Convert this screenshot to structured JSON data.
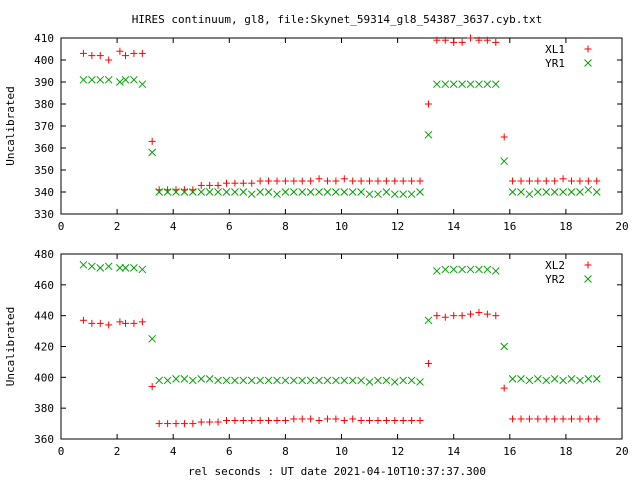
{
  "page": {
    "title": "HIRES continuum, gl8, file:Skynet_59314_gl8_54387_3637.cyb.txt",
    "xlabel": "rel seconds : UT date 2021-04-10T10:37:37.300"
  },
  "colors": {
    "plus": "#ff0000",
    "cross": "#00a000",
    "axis": "#000000",
    "background": "#ffffff"
  },
  "chart_data": [
    {
      "type": "scatter",
      "ylabel": "Uncalibrated",
      "xlim": [
        0,
        20
      ],
      "ylim": [
        330,
        410
      ],
      "xticks": [
        "0",
        "2",
        "4",
        "6",
        "8",
        "10",
        "12",
        "14",
        "16",
        "18",
        "20"
      ],
      "yticks": [
        "330",
        "340",
        "350",
        "360",
        "370",
        "380",
        "390",
        "400",
        "410"
      ],
      "legend_position": "top-right",
      "series": [
        {
          "name": "XL1",
          "marker": "plus",
          "x": [
            0.8,
            1.1,
            1.4,
            1.7,
            2.1,
            2.3,
            2.6,
            2.9,
            3.25,
            3.5,
            3.8,
            4.1,
            4.4,
            4.7,
            5.0,
            5.3,
            5.6,
            5.9,
            6.2,
            6.5,
            6.8,
            7.1,
            7.4,
            7.7,
            8.0,
            8.3,
            8.6,
            8.9,
            9.2,
            9.5,
            9.8,
            10.1,
            10.4,
            10.7,
            11.0,
            11.3,
            11.6,
            11.9,
            12.2,
            12.5,
            12.8,
            13.1,
            13.4,
            13.7,
            14.0,
            14.3,
            14.6,
            14.9,
            15.2,
            15.5,
            15.8,
            16.1,
            16.4,
            16.7,
            17.0,
            17.3,
            17.6,
            17.9,
            18.2,
            18.5,
            18.8,
            19.1
          ],
          "y": [
            403,
            402,
            402,
            400,
            404,
            402,
            403,
            403,
            363,
            341,
            341,
            341,
            341,
            341,
            343,
            343,
            343,
            344,
            344,
            344,
            344,
            345,
            345,
            345,
            345,
            345,
            345,
            345,
            346,
            345,
            345,
            346,
            345,
            345,
            345,
            345,
            345,
            345,
            345,
            345,
            345,
            380,
            409,
            409,
            408,
            408,
            410,
            409,
            409,
            408,
            365,
            345,
            345,
            345,
            345,
            345,
            345,
            346,
            345,
            345,
            345,
            345
          ]
        },
        {
          "name": "YR1",
          "marker": "cross",
          "x": [
            0.8,
            1.1,
            1.4,
            1.7,
            2.1,
            2.3,
            2.6,
            2.9,
            3.25,
            3.5,
            3.8,
            4.1,
            4.4,
            4.7,
            5.0,
            5.3,
            5.6,
            5.9,
            6.2,
            6.5,
            6.8,
            7.1,
            7.4,
            7.7,
            8.0,
            8.3,
            8.6,
            8.9,
            9.2,
            9.5,
            9.8,
            10.1,
            10.4,
            10.7,
            11.0,
            11.3,
            11.6,
            11.9,
            12.2,
            12.5,
            12.8,
            13.1,
            13.4,
            13.7,
            14.0,
            14.3,
            14.6,
            14.9,
            15.2,
            15.5,
            15.8,
            16.1,
            16.4,
            16.7,
            17.0,
            17.3,
            17.6,
            17.9,
            18.2,
            18.5,
            18.8,
            19.1
          ],
          "y": [
            391,
            391,
            391,
            391,
            390,
            391,
            391,
            389,
            358,
            340,
            340,
            340,
            340,
            340,
            340,
            340,
            340,
            340,
            340,
            340,
            339,
            340,
            340,
            339,
            340,
            340,
            340,
            340,
            340,
            340,
            340,
            340,
            340,
            340,
            339,
            339,
            340,
            339,
            339,
            339,
            340,
            366,
            389,
            389,
            389,
            389,
            389,
            389,
            389,
            389,
            354,
            340,
            340,
            339,
            340,
            340,
            340,
            340,
            340,
            340,
            341,
            340
          ]
        }
      ]
    },
    {
      "type": "scatter",
      "ylabel": "Uncalibrated",
      "xlim": [
        0,
        20
      ],
      "ylim": [
        360,
        480
      ],
      "xticks": [
        "0",
        "2",
        "4",
        "6",
        "8",
        "10",
        "12",
        "14",
        "16",
        "18",
        "20"
      ],
      "yticks": [
        "360",
        "380",
        "400",
        "420",
        "440",
        "460",
        "480"
      ],
      "legend_position": "top-right",
      "series": [
        {
          "name": "XL2",
          "marker": "plus",
          "x": [
            0.8,
            1.1,
            1.4,
            1.7,
            2.1,
            2.3,
            2.6,
            2.9,
            3.25,
            3.5,
            3.8,
            4.1,
            4.4,
            4.7,
            5.0,
            5.3,
            5.6,
            5.9,
            6.2,
            6.5,
            6.8,
            7.1,
            7.4,
            7.7,
            8.0,
            8.3,
            8.6,
            8.9,
            9.2,
            9.5,
            9.8,
            10.1,
            10.4,
            10.7,
            11.0,
            11.3,
            11.6,
            11.9,
            12.2,
            12.5,
            12.8,
            13.1,
            13.4,
            13.7,
            14.0,
            14.3,
            14.6,
            14.9,
            15.2,
            15.5,
            15.8,
            16.1,
            16.4,
            16.7,
            17.0,
            17.3,
            17.6,
            17.9,
            18.2,
            18.5,
            18.8,
            19.1
          ],
          "y": [
            437,
            435,
            435,
            434,
            436,
            435,
            435,
            436,
            394,
            370,
            370,
            370,
            370,
            370,
            371,
            371,
            371,
            372,
            372,
            372,
            372,
            372,
            372,
            372,
            372,
            373,
            373,
            373,
            372,
            373,
            373,
            372,
            373,
            372,
            372,
            372,
            372,
            372,
            372,
            372,
            372,
            409,
            440,
            439,
            440,
            440,
            441,
            442,
            441,
            440,
            393,
            373,
            373,
            373,
            373,
            373,
            373,
            373,
            373,
            373,
            373,
            373
          ]
        },
        {
          "name": "YR2",
          "marker": "cross",
          "x": [
            0.8,
            1.1,
            1.4,
            1.7,
            2.1,
            2.3,
            2.6,
            2.9,
            3.25,
            3.5,
            3.8,
            4.1,
            4.4,
            4.7,
            5.0,
            5.3,
            5.6,
            5.9,
            6.2,
            6.5,
            6.8,
            7.1,
            7.4,
            7.7,
            8.0,
            8.3,
            8.6,
            8.9,
            9.2,
            9.5,
            9.8,
            10.1,
            10.4,
            10.7,
            11.0,
            11.3,
            11.6,
            11.9,
            12.2,
            12.5,
            12.8,
            13.1,
            13.4,
            13.7,
            14.0,
            14.3,
            14.6,
            14.9,
            15.2,
            15.5,
            15.8,
            16.1,
            16.4,
            16.7,
            17.0,
            17.3,
            17.6,
            17.9,
            18.2,
            18.5,
            18.8,
            19.1
          ],
          "y": [
            473,
            472,
            471,
            472,
            471,
            471,
            471,
            470,
            425,
            398,
            398,
            399,
            399,
            398,
            399,
            399,
            398,
            398,
            398,
            398,
            398,
            398,
            398,
            398,
            398,
            398,
            398,
            398,
            398,
            398,
            398,
            398,
            398,
            398,
            397,
            398,
            398,
            397,
            398,
            398,
            397,
            437,
            469,
            470,
            470,
            470,
            470,
            470,
            470,
            469,
            420,
            399,
            399,
            398,
            399,
            398,
            399,
            398,
            399,
            398,
            399,
            399
          ]
        }
      ]
    }
  ]
}
